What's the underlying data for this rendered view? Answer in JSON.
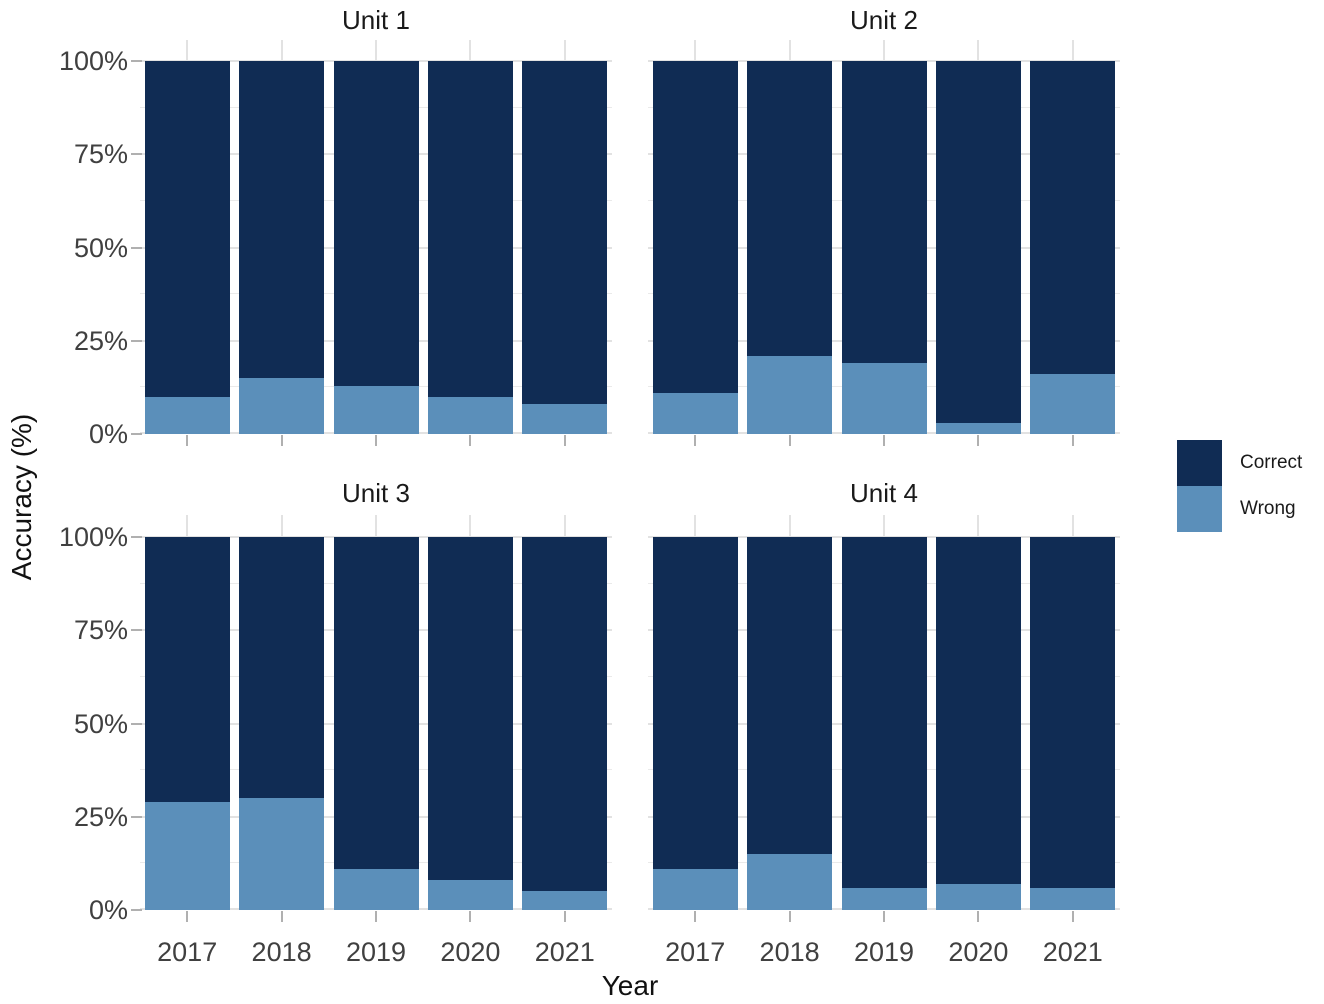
{
  "chart_data": {
    "type": "bar",
    "stacked": true,
    "units": "percent",
    "title": "",
    "xlabel": "Year",
    "ylabel": "Accuracy (%)",
    "categories": [
      "2017",
      "2018",
      "2019",
      "2020",
      "2021"
    ],
    "y_tick_labels": [
      "0%",
      "25%",
      "50%",
      "75%",
      "100%"
    ],
    "y_major_ticks": [
      0,
      25,
      50,
      75,
      100
    ],
    "y_minor_ticks": [
      12.5,
      37.5,
      62.5,
      87.5
    ],
    "ylim": [
      0,
      100
    ],
    "grid": "on",
    "facets": [
      {
        "title": "Unit 1",
        "series": [
          {
            "name": "Correct",
            "values": [
              90,
              85,
              87,
              90,
              92
            ]
          },
          {
            "name": "Wrong",
            "values": [
              10,
              15,
              13,
              10,
              8
            ]
          }
        ]
      },
      {
        "title": "Unit 2",
        "series": [
          {
            "name": "Correct",
            "values": [
              89,
              79,
              81,
              97,
              84
            ]
          },
          {
            "name": "Wrong",
            "values": [
              11,
              21,
              19,
              3,
              16
            ]
          }
        ]
      },
      {
        "title": "Unit 3",
        "series": [
          {
            "name": "Correct",
            "values": [
              71,
              70,
              89,
              92,
              95
            ]
          },
          {
            "name": "Wrong",
            "values": [
              29,
              30,
              11,
              8,
              5
            ]
          }
        ]
      },
      {
        "title": "Unit 4",
        "series": [
          {
            "name": "Correct",
            "values": [
              89,
              85,
              94,
              93,
              94
            ]
          },
          {
            "name": "Wrong",
            "values": [
              11,
              15,
              6,
              7,
              6
            ]
          }
        ]
      }
    ],
    "legend": {
      "position": "right",
      "items": [
        {
          "label": "Correct",
          "color": "#102c54"
        },
        {
          "label": "Wrong",
          "color": "#5b8fba"
        }
      ]
    }
  }
}
